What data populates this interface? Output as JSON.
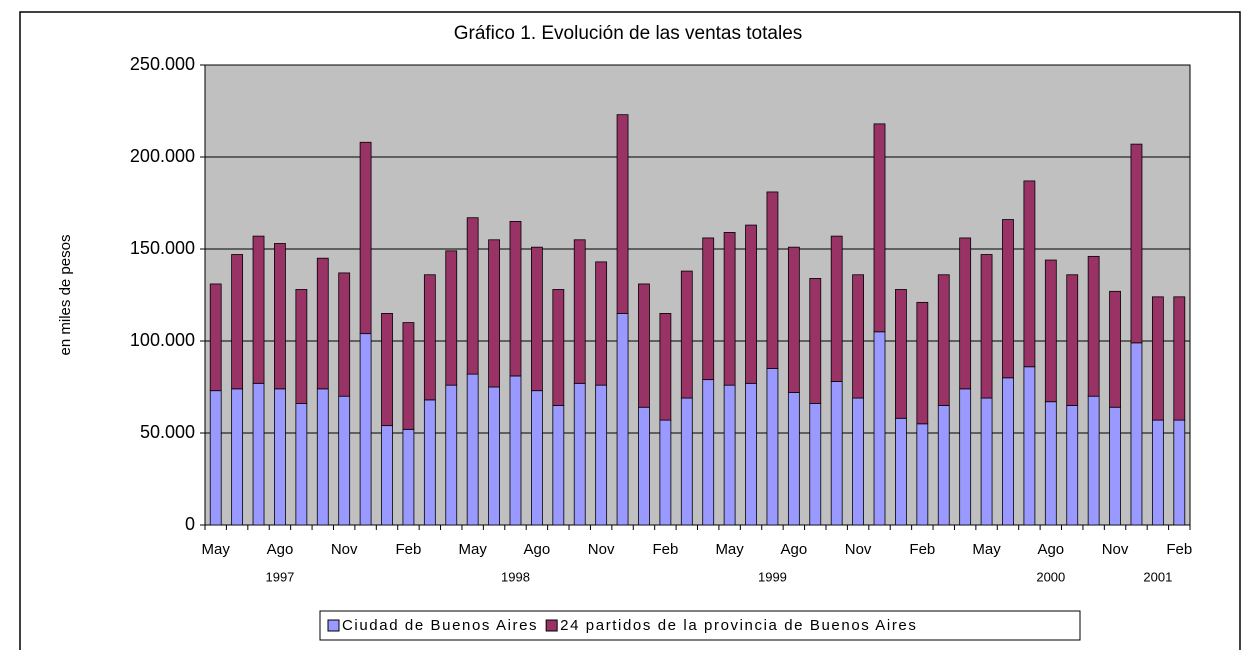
{
  "chart_data": {
    "type": "stacked_bar",
    "title": "Gráfico 1. Evolución de las ventas totales",
    "y_label": "en miles de pesos",
    "categories": [
      "May",
      null,
      null,
      "Ago",
      null,
      null,
      "Nov",
      null,
      null,
      "Feb",
      null,
      null,
      "May",
      null,
      null,
      "Ago",
      null,
      null,
      "Nov",
      null,
      null,
      "Feb",
      null,
      null,
      "May",
      null,
      null,
      "Ago",
      null,
      null,
      "Nov",
      null,
      null,
      "Feb",
      null,
      null,
      "May",
      null,
      null,
      "Ago",
      null,
      null,
      "Nov",
      null,
      null,
      "Feb"
    ],
    "year_labels": [
      null,
      null,
      null,
      "1997",
      null,
      null,
      null,
      null,
      null,
      null,
      null,
      null,
      null,
      null,
      "1998",
      null,
      null,
      null,
      null,
      null,
      null,
      null,
      null,
      null,
      null,
      null,
      "1999",
      null,
      null,
      null,
      null,
      null,
      null,
      null,
      null,
      null,
      null,
      null,
      null,
      "2000",
      null,
      null,
      null,
      null,
      "2001",
      null
    ],
    "series": [
      {
        "name": "Ciudad de Buenos Aires",
        "color": "#9999ff",
        "values": [
          73000,
          74000,
          77000,
          74000,
          66000,
          74000,
          70000,
          104000,
          54000,
          52000,
          68000,
          76000,
          82000,
          75000,
          81000,
          73000,
          65000,
          77000,
          76000,
          115000,
          64000,
          57000,
          69000,
          79000,
          76000,
          77000,
          85000,
          72000,
          66000,
          78000,
          69000,
          105000,
          58000,
          55000,
          65000,
          74000,
          69000,
          80000,
          86000,
          67000,
          65000,
          70000,
          64000,
          99000,
          57000,
          57000
        ]
      },
      {
        "name": "24 partidos de la provincia de Buenos Aires",
        "color": "#993366",
        "values": [
          58000,
          73000,
          80000,
          79000,
          62000,
          71000,
          67000,
          104000,
          61000,
          58000,
          68000,
          73000,
          85000,
          80000,
          84000,
          78000,
          63000,
          78000,
          67000,
          108000,
          67000,
          58000,
          69000,
          77000,
          83000,
          86000,
          96000,
          79000,
          68000,
          79000,
          67000,
          113000,
          70000,
          66000,
          71000,
          82000,
          78000,
          86000,
          101000,
          77000,
          71000,
          76000,
          63000,
          108000,
          67000,
          67000
        ]
      }
    ],
    "ylim": [
      0,
      250000
    ],
    "yticks": [
      0,
      {
        "value": 50000,
        "label": "50.000"
      },
      {
        "value": 100000,
        "label": "100.000"
      },
      {
        "value": 150000,
        "label": "150.000"
      },
      {
        "value": 200000,
        "label": "200.000"
      },
      {
        "value": 250000,
        "label": "250.000"
      }
    ],
    "grid": true,
    "plot_background": "#c0c0c0",
    "legend": "bottom"
  }
}
